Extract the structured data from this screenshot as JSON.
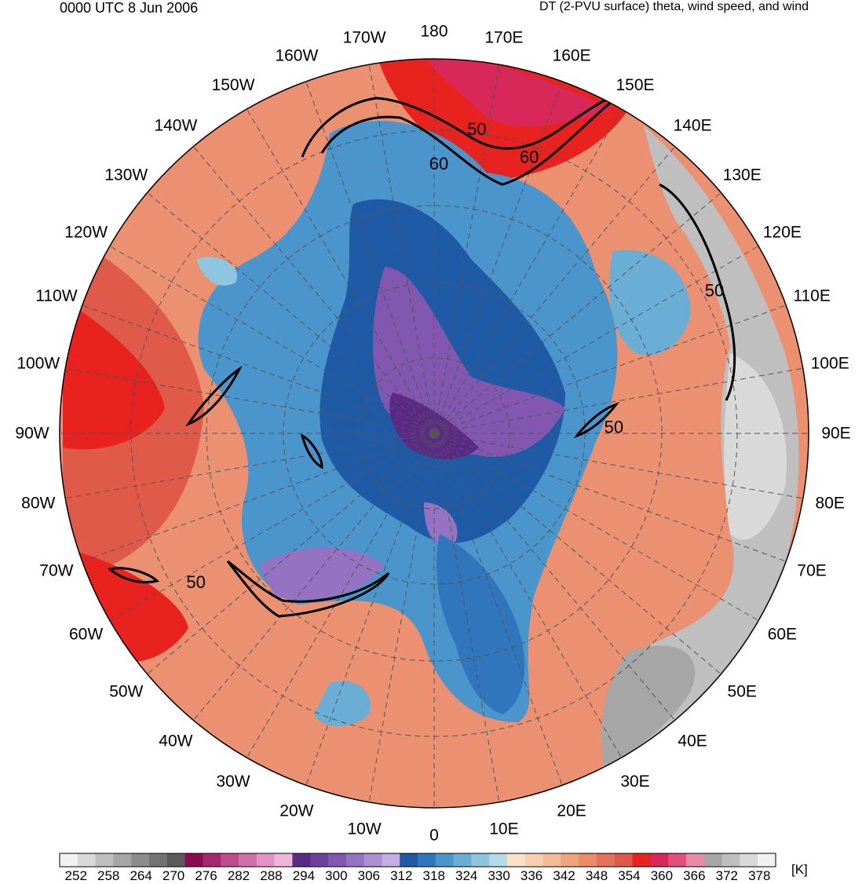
{
  "header": {
    "valid_time": "0000 UTC 8 Jun 2006",
    "field_title": "DT (2-PVU surface) theta, wind speed, and wind"
  },
  "map": {
    "projection": "north-polar-stereographic",
    "meridians": [
      {
        "label": "180",
        "deg": 180
      },
      {
        "label": "170E",
        "deg": 170
      },
      {
        "label": "160E",
        "deg": 160
      },
      {
        "label": "150E",
        "deg": 150
      },
      {
        "label": "140E",
        "deg": 140
      },
      {
        "label": "130E",
        "deg": 130
      },
      {
        "label": "120E",
        "deg": 120
      },
      {
        "label": "110E",
        "deg": 110
      },
      {
        "label": "100E",
        "deg": 100
      },
      {
        "label": "90E",
        "deg": 90
      },
      {
        "label": "80E",
        "deg": 80
      },
      {
        "label": "70E",
        "deg": 70
      },
      {
        "label": "60E",
        "deg": 60
      },
      {
        "label": "50E",
        "deg": 50
      },
      {
        "label": "40E",
        "deg": 40
      },
      {
        "label": "30E",
        "deg": 30
      },
      {
        "label": "20E",
        "deg": 20
      },
      {
        "label": "10E",
        "deg": 10
      },
      {
        "label": "0",
        "deg": 0
      },
      {
        "label": "10W",
        "deg": -10
      },
      {
        "label": "20W",
        "deg": -20
      },
      {
        "label": "30W",
        "deg": -30
      },
      {
        "label": "40W",
        "deg": -40
      },
      {
        "label": "50W",
        "deg": -50
      },
      {
        "label": "60W",
        "deg": -60
      },
      {
        "label": "70W",
        "deg": -70
      },
      {
        "label": "80W",
        "deg": -80
      },
      {
        "label": "90W",
        "deg": -90
      },
      {
        "label": "100W",
        "deg": -100
      },
      {
        "label": "110W",
        "deg": -110
      },
      {
        "label": "120W",
        "deg": -120
      },
      {
        "label": "130W",
        "deg": -130
      },
      {
        "label": "140W",
        "deg": -140
      },
      {
        "label": "150W",
        "deg": -150
      },
      {
        "label": "160W",
        "deg": -160
      },
      {
        "label": "170W",
        "deg": -170
      }
    ],
    "wind_speed_contour_labels": [
      {
        "text": "50",
        "meridian_deg": 172,
        "colat_frac": 0.82
      },
      {
        "text": "60",
        "meridian_deg": 179,
        "colat_frac": 0.72
      },
      {
        "text": "60",
        "meridian_deg": 161,
        "colat_frac": 0.78
      },
      {
        "text": "50",
        "meridian_deg": 117,
        "colat_frac": 0.84
      },
      {
        "text": "50",
        "meridian_deg": 92,
        "colat_frac": 0.48
      },
      {
        "text": "50",
        "meridian_deg": -58,
        "colat_frac": 0.75
      }
    ]
  },
  "colorbar": {
    "unit": "[K]",
    "labels": [
      "252",
      "258",
      "264",
      "270",
      "276",
      "282",
      "288",
      "294",
      "300",
      "306",
      "312",
      "318",
      "324",
      "330",
      "336",
      "342",
      "348",
      "354",
      "360",
      "366",
      "372",
      "378"
    ],
    "colors": [
      "#f2f2f2",
      "#d9d9d9",
      "#bfbfbf",
      "#a6a6a6",
      "#8c8c8c",
      "#737373",
      "#5a5a5a",
      "#8b0a50",
      "#a6286e",
      "#bf4b8a",
      "#d36fa8",
      "#e394c4",
      "#f0b6da",
      "#5b2a86",
      "#6e3f9c",
      "#8157b0",
      "#9672c3",
      "#ab8fd3",
      "#c3aee2",
      "#1f5aa6",
      "#2f76bc",
      "#4a95cc",
      "#6aaed6",
      "#8ec6df",
      "#b3dbe8",
      "#f8e1c8",
      "#f6cfae",
      "#f3bb96",
      "#efa47e",
      "#ea8b6a",
      "#e47259",
      "#dd5a4b",
      "#e8221e",
      "#d8285a",
      "#e24f7c",
      "#e98aa6",
      "#a6a6a6",
      "#bfbfbf",
      "#d9d9d9",
      "#f2f2f2"
    ]
  }
}
